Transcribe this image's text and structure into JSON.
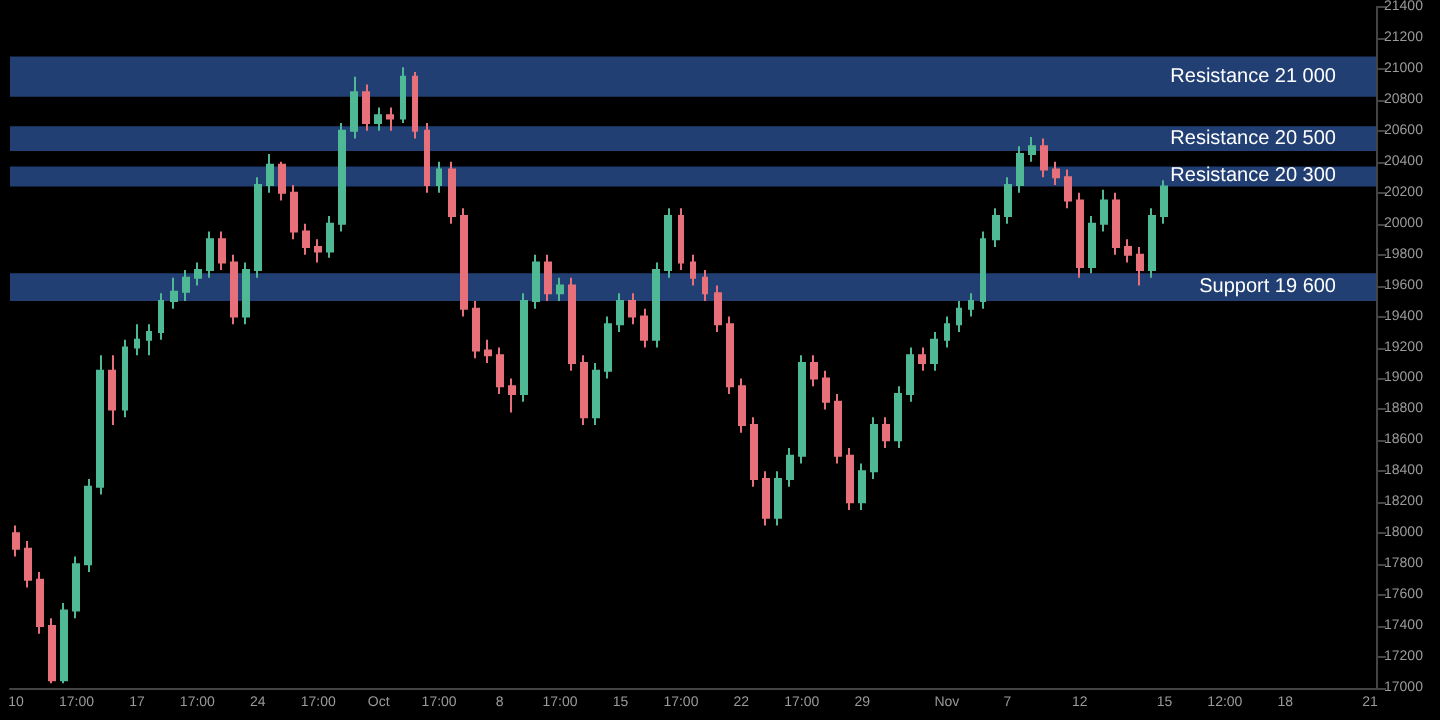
{
  "chart_data": {
    "type": "candlestick",
    "categories": [
      "10",
      null,
      null,
      null,
      null,
      "17:00",
      null,
      null,
      null,
      null,
      "17",
      null,
      null,
      null,
      null,
      "17:00",
      null,
      null,
      null,
      null,
      "24",
      null,
      null,
      null,
      null,
      "17:00",
      null,
      null,
      null,
      null,
      "Oct",
      null,
      null,
      null,
      null,
      "17:00",
      null,
      null,
      null,
      null,
      "8",
      null,
      null,
      null,
      null,
      "17:00",
      null,
      null,
      null,
      null,
      "15",
      null,
      null,
      null,
      null,
      "17:00",
      null,
      null,
      null,
      null,
      "22",
      null,
      null,
      null,
      null,
      "17:00",
      null,
      null,
      null,
      null,
      "29",
      null,
      null,
      null,
      null,
      null,
      null,
      "Nov",
      null,
      null,
      null,
      null,
      "7",
      null,
      null,
      null,
      null,
      null,
      "12",
      null,
      null,
      null,
      null,
      null,
      null,
      "15",
      null,
      null,
      null,
      null,
      "12:00",
      null,
      null,
      null,
      null,
      "18",
      null,
      null,
      null,
      null,
      null,
      null,
      "21"
    ],
    "ohlc": [
      [
        18000,
        18050,
        17850,
        17900
      ],
      [
        17900,
        17950,
        17650,
        17700
      ],
      [
        17700,
        17750,
        17350,
        17400
      ],
      [
        17400,
        17450,
        17030,
        17050
      ],
      [
        17050,
        17550,
        17030,
        17500
      ],
      [
        17500,
        17850,
        17450,
        17800
      ],
      [
        17800,
        18350,
        17750,
        18300
      ],
      [
        18300,
        19150,
        18250,
        19050
      ],
      [
        19050,
        19150,
        18700,
        18800
      ],
      [
        18800,
        19250,
        18750,
        19200
      ],
      [
        19200,
        19350,
        19150,
        19250
      ],
      [
        19250,
        19350,
        19150,
        19300
      ],
      [
        19300,
        19550,
        19250,
        19500
      ],
      [
        19500,
        19650,
        19450,
        19560
      ],
      [
        19560,
        19700,
        19500,
        19650
      ],
      [
        19650,
        19750,
        19600,
        19700
      ],
      [
        19700,
        19950,
        19650,
        19900
      ],
      [
        19900,
        19950,
        19700,
        19750
      ],
      [
        19750,
        19800,
        19350,
        19400
      ],
      [
        19400,
        19750,
        19350,
        19700
      ],
      [
        19700,
        20300,
        19650,
        20250
      ],
      [
        20250,
        20450,
        20200,
        20380
      ],
      [
        20380,
        20400,
        20150,
        20200
      ],
      [
        20200,
        20250,
        19900,
        19950
      ],
      [
        19950,
        20000,
        19800,
        19850
      ],
      [
        19850,
        19900,
        19750,
        19820
      ],
      [
        19820,
        20050,
        19780,
        20000
      ],
      [
        20000,
        20650,
        19950,
        20600
      ],
      [
        20600,
        20950,
        20550,
        20850
      ],
      [
        20850,
        20900,
        20600,
        20650
      ],
      [
        20650,
        20750,
        20600,
        20700
      ],
      [
        20700,
        20750,
        20600,
        20680
      ],
      [
        20680,
        21010,
        20650,
        20950
      ],
      [
        20950,
        20980,
        20550,
        20600
      ],
      [
        20600,
        20650,
        20200,
        20250
      ],
      [
        20250,
        20400,
        20200,
        20350
      ],
      [
        20350,
        20400,
        20000,
        20050
      ],
      [
        20050,
        20100,
        19400,
        19450
      ],
      [
        19450,
        19500,
        19130,
        19180
      ],
      [
        19180,
        19250,
        19100,
        19150
      ],
      [
        19150,
        19200,
        18900,
        18950
      ],
      [
        18950,
        19000,
        18780,
        18900
      ],
      [
        18900,
        19550,
        18850,
        19500
      ],
      [
        19500,
        19800,
        19450,
        19750
      ],
      [
        19750,
        19800,
        19500,
        19550
      ],
      [
        19550,
        19650,
        19500,
        19600
      ],
      [
        19600,
        19650,
        19050,
        19100
      ],
      [
        19100,
        19150,
        18700,
        18750
      ],
      [
        18750,
        19100,
        18700,
        19050
      ],
      [
        19050,
        19400,
        19000,
        19350
      ],
      [
        19350,
        19550,
        19300,
        19500
      ],
      [
        19500,
        19550,
        19350,
        19400
      ],
      [
        19400,
        19450,
        19200,
        19250
      ],
      [
        19250,
        19750,
        19200,
        19700
      ],
      [
        19700,
        20100,
        19650,
        20050
      ],
      [
        20050,
        20100,
        19700,
        19750
      ],
      [
        19750,
        19800,
        19600,
        19650
      ],
      [
        19650,
        19700,
        19500,
        19550
      ],
      [
        19550,
        19600,
        19300,
        19350
      ],
      [
        19350,
        19400,
        18900,
        18950
      ],
      [
        18950,
        19000,
        18650,
        18700
      ],
      [
        18700,
        18750,
        18300,
        18350
      ],
      [
        18350,
        18400,
        18050,
        18100
      ],
      [
        18100,
        18400,
        18050,
        18350
      ],
      [
        18350,
        18550,
        18300,
        18500
      ],
      [
        18500,
        19150,
        18450,
        19100
      ],
      [
        19100,
        19150,
        18950,
        19000
      ],
      [
        19000,
        19050,
        18800,
        18850
      ],
      [
        18850,
        18900,
        18450,
        18500
      ],
      [
        18500,
        18550,
        18150,
        18200
      ],
      [
        18200,
        18450,
        18150,
        18400
      ],
      [
        18400,
        18750,
        18350,
        18700
      ],
      [
        18700,
        18750,
        18550,
        18600
      ],
      [
        18600,
        18950,
        18550,
        18900
      ],
      [
        18900,
        19200,
        18850,
        19150
      ],
      [
        19150,
        19200,
        19050,
        19100
      ],
      [
        19100,
        19300,
        19050,
        19250
      ],
      [
        19250,
        19400,
        19200,
        19350
      ],
      [
        19350,
        19500,
        19300,
        19450
      ],
      [
        19450,
        19550,
        19400,
        19500
      ],
      [
        19500,
        19950,
        19450,
        19900
      ],
      [
        19900,
        20100,
        19850,
        20050
      ],
      [
        20050,
        20300,
        20000,
        20250
      ],
      [
        20250,
        20500,
        20200,
        20450
      ],
      [
        20450,
        20560,
        20400,
        20500
      ],
      [
        20500,
        20550,
        20300,
        20350
      ],
      [
        20350,
        20400,
        20250,
        20300
      ],
      [
        20300,
        20350,
        20100,
        20150
      ],
      [
        20150,
        20200,
        19650,
        19720
      ],
      [
        19720,
        20050,
        19680,
        20000
      ],
      [
        20000,
        20220,
        19950,
        20150
      ],
      [
        20150,
        20200,
        19800,
        19850
      ],
      [
        19850,
        19900,
        19750,
        19800
      ],
      [
        19800,
        19850,
        19600,
        19700
      ],
      [
        19700,
        20100,
        19650,
        20050
      ],
      [
        20050,
        20280,
        20000,
        20240
      ],
      null,
      null,
      null,
      null,
      null,
      null,
      null,
      null,
      null,
      null,
      null,
      null,
      null,
      null,
      null,
      null,
      null
    ],
    "colors": [
      "#e8707a",
      "#e8707a",
      "#e8707a",
      "#e8707a",
      "#4fb894",
      "#4fb894",
      "#4fb894",
      "#4fb894",
      "#e8707a",
      "#4fb894",
      "#4fb894",
      "#4fb894",
      "#4fb894",
      "#4fb894",
      "#4fb894",
      "#4fb894",
      "#4fb894",
      "#e8707a",
      "#e8707a",
      "#4fb894",
      "#4fb894",
      "#4fb894",
      "#e8707a",
      "#e8707a",
      "#e8707a",
      "#e8707a",
      "#4fb894",
      "#4fb894",
      "#4fb894",
      "#e8707a",
      "#4fb894",
      "#e8707a",
      "#4fb894",
      "#e8707a",
      "#e8707a",
      "#4fb894",
      "#e8707a",
      "#e8707a",
      "#e8707a",
      "#e8707a",
      "#e8707a",
      "#e8707a",
      "#4fb894",
      "#4fb894",
      "#e8707a",
      "#4fb894",
      "#e8707a",
      "#e8707a",
      "#4fb894",
      "#4fb894",
      "#4fb894",
      "#e8707a",
      "#e8707a",
      "#4fb894",
      "#4fb894",
      "#e8707a",
      "#e8707a",
      "#e8707a",
      "#e8707a",
      "#e8707a",
      "#e8707a",
      "#e8707a",
      "#e8707a",
      "#4fb894",
      "#4fb894",
      "#4fb894",
      "#e8707a",
      "#e8707a",
      "#e8707a",
      "#e8707a",
      "#4fb894",
      "#4fb894",
      "#e8707a",
      "#4fb894",
      "#4fb894",
      "#e8707a",
      "#4fb894",
      "#4fb894",
      "#4fb894",
      "#4fb894",
      "#4fb894",
      "#4fb894",
      "#4fb894",
      "#4fb894",
      "#4fb894",
      "#e8707a",
      "#e8707a",
      "#e8707a",
      "#e8707a",
      "#4fb894",
      "#4fb894",
      "#e8707a",
      "#e8707a",
      "#e8707a",
      "#4fb894",
      "#4fb894",
      null,
      null,
      null,
      null,
      null,
      null,
      null,
      null,
      null,
      null,
      null,
      null,
      null,
      null,
      null,
      null,
      null
    ],
    "ylim": [
      17000,
      21400
    ],
    "yticks": [
      17000,
      17200,
      17400,
      17600,
      17800,
      18000,
      18200,
      18400,
      18600,
      18800,
      19000,
      19200,
      19400,
      19600,
      19800,
      20000,
      20200,
      20400,
      20600,
      20800,
      21000,
      21200,
      21400
    ],
    "bands": [
      {
        "axis": "y",
        "from": 20820,
        "to": 21080,
        "label": "Resistance 21 000",
        "color": "#213f73"
      },
      {
        "axis": "y",
        "from": 20470,
        "to": 20630,
        "label": "Resistance 20 500",
        "color": "#213f73"
      },
      {
        "axis": "y",
        "from": 20240,
        "to": 20370,
        "label": "Resistance 20 300",
        "color": "#213f73"
      },
      {
        "axis": "y",
        "from": 19500,
        "to": 19680,
        "label": "Support 19 600",
        "color": "#213f73"
      }
    ],
    "grid": false
  }
}
